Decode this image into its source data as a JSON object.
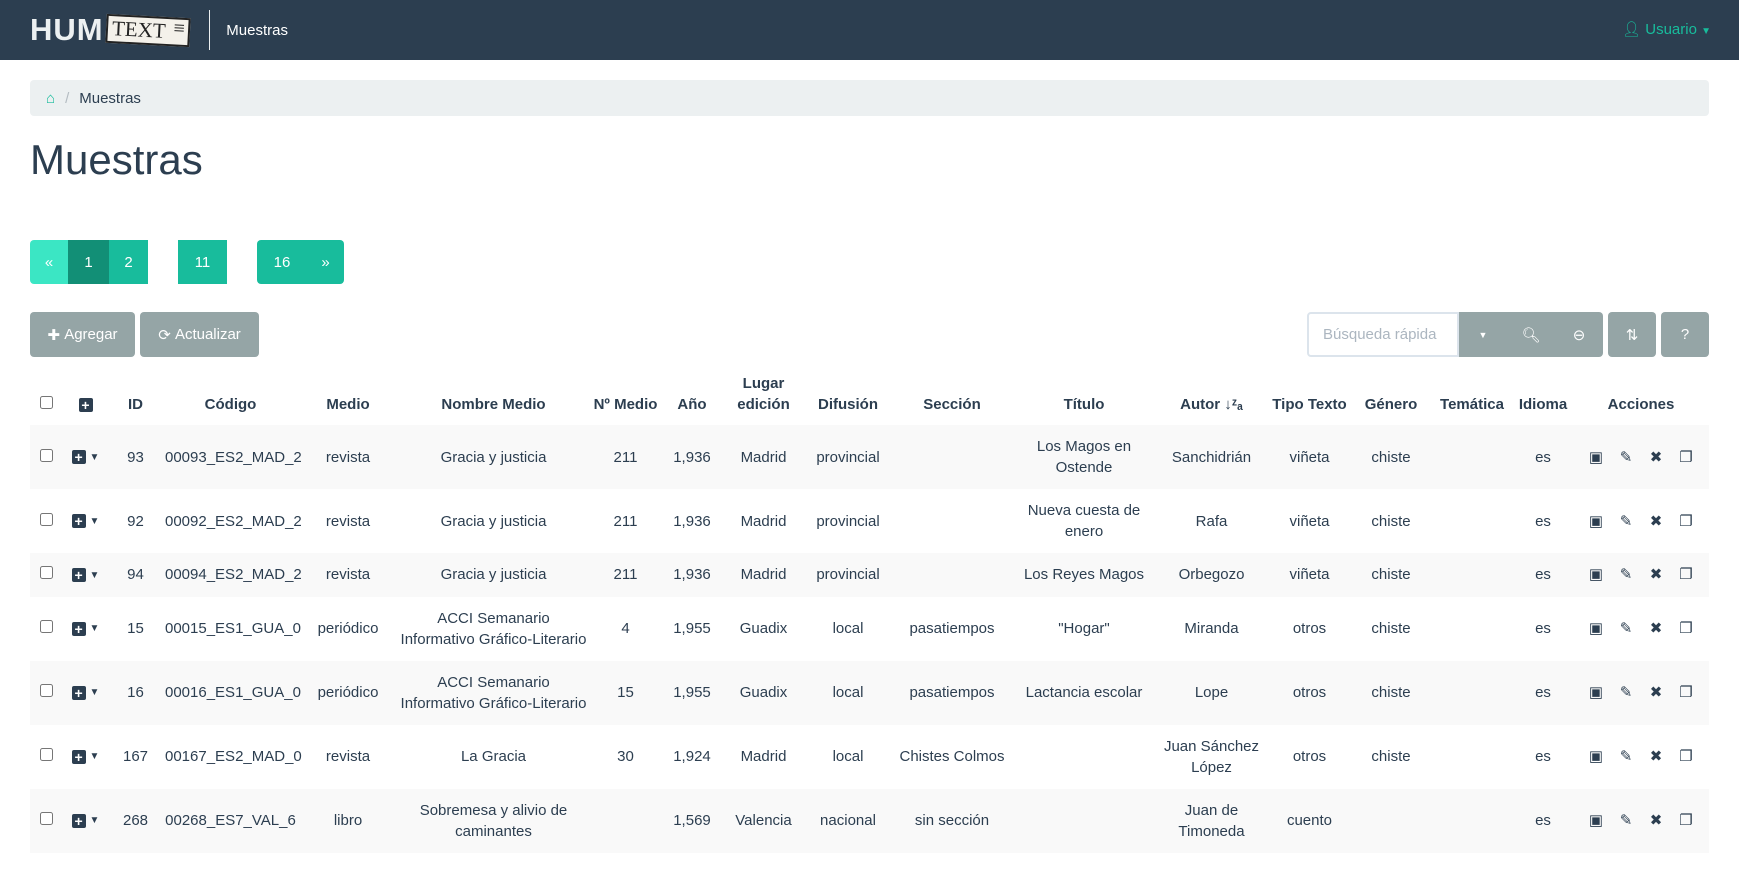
{
  "nav": {
    "logo_hum": "HUM",
    "logo_text": "TEXT",
    "link": "Muestras",
    "user": "Usuario"
  },
  "breadcrumb": {
    "current": "Muestras"
  },
  "page_title": "Muestras",
  "pagination": {
    "prev": "«",
    "pages": [
      "1",
      "2",
      "11",
      "16"
    ],
    "next": "»",
    "active": "1"
  },
  "toolbar": {
    "add": "Agregar",
    "refresh": "Actualizar",
    "search_placeholder": "Búsqueda rápida"
  },
  "columns": [
    "ID",
    "Código",
    "Medio",
    "Nombre Medio",
    "Nº Medio",
    "Año",
    "Lugar edición",
    "Difusión",
    "Sección",
    "Título",
    "Autor",
    "Tipo Texto",
    "Género",
    "Temática",
    "Idioma",
    "Acciones"
  ],
  "rows": [
    [
      "93",
      "00093_ES2_MAD_2",
      "revista",
      "Gracia y justicia",
      "211",
      "1,936",
      "Madrid",
      "provincial",
      "",
      "Los Magos en Ostende",
      "Sanchidrián",
      "viñeta",
      "chiste",
      "",
      "es"
    ],
    [
      "92",
      "00092_ES2_MAD_2",
      "revista",
      "Gracia y justicia",
      "211",
      "1,936",
      "Madrid",
      "provincial",
      "",
      "Nueva cuesta de enero",
      "Rafa",
      "viñeta",
      "chiste",
      "",
      "es"
    ],
    [
      "94",
      "00094_ES2_MAD_2",
      "revista",
      "Gracia y justicia",
      "211",
      "1,936",
      "Madrid",
      "provincial",
      "",
      "Los Reyes Magos",
      "Orbegozo",
      "viñeta",
      "chiste",
      "",
      "es"
    ],
    [
      "15",
      "00015_ES1_GUA_0",
      "periódico",
      "ACCI Semanario Informativo Gráfico-Literario",
      "4",
      "1,955",
      "Guadix",
      "local",
      "pasatiempos",
      "\"Hogar\"",
      "Miranda",
      "otros",
      "chiste",
      "",
      "es"
    ],
    [
      "16",
      "00016_ES1_GUA_0",
      "periódico",
      "ACCI Semanario Informativo Gráfico-Literario",
      "15",
      "1,955",
      "Guadix",
      "local",
      "pasatiempos",
      "Lactancia escolar",
      "Lope",
      "otros",
      "chiste",
      "",
      "es"
    ],
    [
      "167",
      "00167_ES2_MAD_0",
      "revista",
      "La Gracia",
      "30",
      "1,924",
      "Madrid",
      "local",
      "Chistes Colmos",
      "",
      "Juan Sánchez López",
      "otros",
      "chiste",
      "",
      "es"
    ],
    [
      "268",
      "00268_ES7_VAL_6",
      "libro",
      "Sobremesa y alivio de caminantes",
      "",
      "1,569",
      "Valencia",
      "nacional",
      "sin sección",
      "",
      "Juan de Timoneda",
      "cuento",
      "",
      "",
      "es"
    ]
  ],
  "colors": {
    "navbar": "#2c3e50",
    "accent": "#18bc9c",
    "active_page": "#128f76",
    "button": "#95a5a6"
  }
}
